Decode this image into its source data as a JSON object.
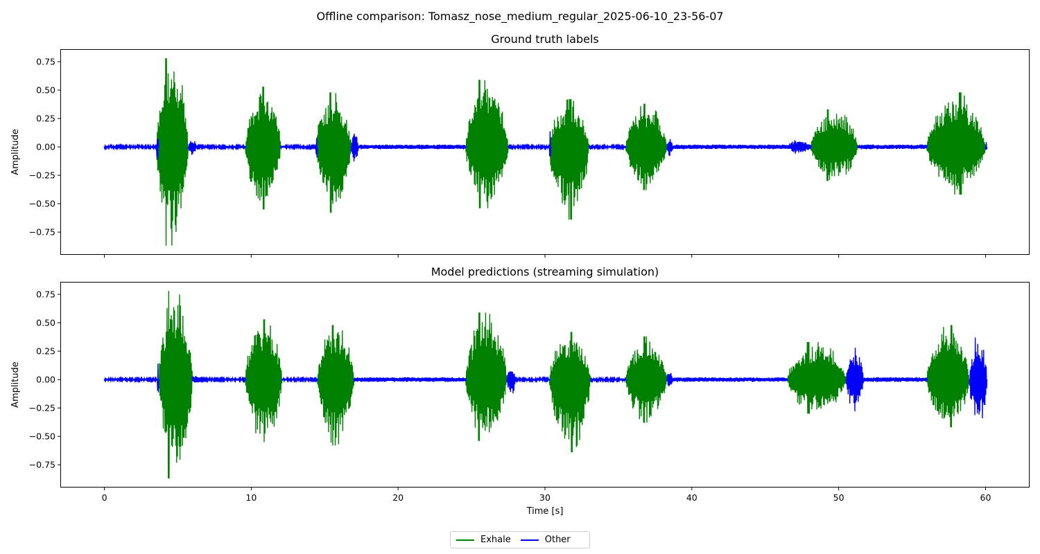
{
  "figure": {
    "suptitle": "Offline comparison: Tomasz_nose_medium_regular_2025-06-10_23-56-07"
  },
  "legend": {
    "placement": "bottom-center",
    "entries": [
      {
        "label": "Exhale",
        "color": "#008000"
      },
      {
        "label": "Other",
        "color": "#0000ff"
      }
    ]
  },
  "chart_data": [
    {
      "type": "line",
      "title": "Ground truth labels",
      "xlabel": "",
      "ylabel": "Amplitude",
      "xlim": [
        -3,
        63
      ],
      "ylim": [
        -0.95,
        0.86
      ],
      "xticks": [
        0,
        10,
        20,
        30,
        40,
        50,
        60
      ],
      "yticks": [
        -0.75,
        -0.5,
        -0.25,
        0.0,
        0.25,
        0.5,
        0.75
      ],
      "ytick_labels": [
        "−0.75",
        "−0.50",
        "−0.25",
        "0.00",
        "0.25",
        "0.50",
        "0.75"
      ],
      "show_xtick_labels": false,
      "grid": false,
      "series": [
        {
          "name": "Exhale",
          "color": "#008000",
          "segments": [
            {
              "t0": 3.55,
              "t1": 5.7,
              "peak": 0.78,
              "trough": -0.87
            },
            {
              "t0": 9.6,
              "t1": 12.0,
              "peak": 0.53,
              "trough": -0.55
            },
            {
              "t0": 14.4,
              "t1": 16.8,
              "peak": 0.48,
              "trough": -0.58
            },
            {
              "t0": 24.6,
              "t1": 27.5,
              "peak": 0.59,
              "trough": -0.54
            },
            {
              "t0": 30.3,
              "t1": 33.0,
              "peak": 0.42,
              "trough": -0.64
            },
            {
              "t0": 35.5,
              "t1": 38.3,
              "peak": 0.38,
              "trough": -0.38
            },
            {
              "t0": 48.1,
              "t1": 51.3,
              "peak": 0.33,
              "trough": -0.3
            },
            {
              "t0": 56.0,
              "t1": 60.0,
              "peak": 0.48,
              "trough": -0.42
            }
          ]
        },
        {
          "name": "Other",
          "color": "#0000ff",
          "segments": [
            {
              "t0": 0.0,
              "t1": 3.55,
              "peak": 0.01,
              "trough": -0.01
            },
            {
              "t0": 3.55,
              "t1": 3.7,
              "peak": 0.14,
              "trough": -0.14
            },
            {
              "t0": 5.7,
              "t1": 6.3,
              "peak": 0.07,
              "trough": -0.07
            },
            {
              "t0": 6.3,
              "t1": 9.6,
              "peak": 0.01,
              "trough": -0.01
            },
            {
              "t0": 12.0,
              "t1": 14.4,
              "peak": 0.01,
              "trough": -0.01
            },
            {
              "t0": 14.4,
              "t1": 14.5,
              "peak": 0.13,
              "trough": -0.13
            },
            {
              "t0": 16.8,
              "t1": 17.3,
              "peak": 0.14,
              "trough": -0.15
            },
            {
              "t0": 17.3,
              "t1": 24.6,
              "peak": 0.02,
              "trough": -0.02
            },
            {
              "t0": 27.5,
              "t1": 30.3,
              "peak": 0.01,
              "trough": -0.01
            },
            {
              "t0": 30.3,
              "t1": 30.4,
              "peak": 0.28,
              "trough": -0.22
            },
            {
              "t0": 33.0,
              "t1": 35.5,
              "peak": 0.01,
              "trough": -0.01
            },
            {
              "t0": 38.3,
              "t1": 38.7,
              "peak": 0.08,
              "trough": -0.08
            },
            {
              "t0": 38.7,
              "t1": 48.1,
              "peak": 0.02,
              "trough": -0.02
            },
            {
              "t0": 46.5,
              "t1": 48.1,
              "peak": 0.06,
              "trough": -0.06
            },
            {
              "t0": 51.3,
              "t1": 56.0,
              "peak": 0.02,
              "trough": -0.02
            },
            {
              "t0": 60.0,
              "t1": 60.1,
              "peak": 0.05,
              "trough": -0.05
            }
          ]
        }
      ]
    },
    {
      "type": "line",
      "title": "Model predictions (streaming simulation)",
      "xlabel": "Time [s]",
      "ylabel": "Amplitude",
      "xlim": [
        -3,
        63
      ],
      "ylim": [
        -0.95,
        0.86
      ],
      "xticks": [
        0,
        10,
        20,
        30,
        40,
        50,
        60
      ],
      "yticks": [
        -0.75,
        -0.5,
        -0.25,
        0.0,
        0.25,
        0.5,
        0.75
      ],
      "ytick_labels": [
        "−0.75",
        "−0.50",
        "−0.25",
        "0.00",
        "0.25",
        "0.50",
        "0.75"
      ],
      "show_xtick_labels": true,
      "grid": false,
      "series": [
        {
          "name": "Exhale",
          "color": "#008000",
          "segments": [
            {
              "t0": 3.7,
              "t1": 6.0,
              "peak": 0.78,
              "trough": -0.87
            },
            {
              "t0": 9.6,
              "t1": 12.1,
              "peak": 0.53,
              "trough": -0.55
            },
            {
              "t0": 14.5,
              "t1": 17.0,
              "peak": 0.48,
              "trough": -0.58
            },
            {
              "t0": 24.6,
              "t1": 27.4,
              "peak": 0.59,
              "trough": -0.54
            },
            {
              "t0": 30.3,
              "t1": 33.1,
              "peak": 0.42,
              "trough": -0.64
            },
            {
              "t0": 35.5,
              "t1": 38.3,
              "peak": 0.38,
              "trough": -0.38
            },
            {
              "t0": 46.5,
              "t1": 50.5,
              "peak": 0.33,
              "trough": -0.3
            },
            {
              "t0": 56.0,
              "t1": 58.9,
              "peak": 0.48,
              "trough": -0.42
            }
          ]
        },
        {
          "name": "Other",
          "color": "#0000ff",
          "segments": [
            {
              "t0": 0.0,
              "t1": 3.6,
              "peak": 0.01,
              "trough": -0.01
            },
            {
              "t0": 3.6,
              "t1": 3.7,
              "peak": 0.14,
              "trough": -0.14
            },
            {
              "t0": 6.0,
              "t1": 6.5,
              "peak": 0.03,
              "trough": -0.03
            },
            {
              "t0": 6.5,
              "t1": 9.6,
              "peak": 0.01,
              "trough": -0.01
            },
            {
              "t0": 12.1,
              "t1": 14.5,
              "peak": 0.01,
              "trough": -0.01
            },
            {
              "t0": 17.0,
              "t1": 24.6,
              "peak": 0.02,
              "trough": -0.02
            },
            {
              "t0": 27.4,
              "t1": 28.0,
              "peak": 0.13,
              "trough": -0.14
            },
            {
              "t0": 28.0,
              "t1": 30.3,
              "peak": 0.01,
              "trough": -0.01
            },
            {
              "t0": 33.1,
              "t1": 35.5,
              "peak": 0.01,
              "trough": -0.01
            },
            {
              "t0": 38.3,
              "t1": 38.7,
              "peak": 0.08,
              "trough": -0.08
            },
            {
              "t0": 38.7,
              "t1": 46.5,
              "peak": 0.02,
              "trough": -0.02
            },
            {
              "t0": 50.5,
              "t1": 51.7,
              "peak": 0.28,
              "trough": -0.28
            },
            {
              "t0": 51.7,
              "t1": 56.0,
              "peak": 0.02,
              "trough": -0.02
            },
            {
              "t0": 58.9,
              "t1": 60.1,
              "peak": 0.37,
              "trough": -0.41
            }
          ]
        }
      ]
    }
  ]
}
